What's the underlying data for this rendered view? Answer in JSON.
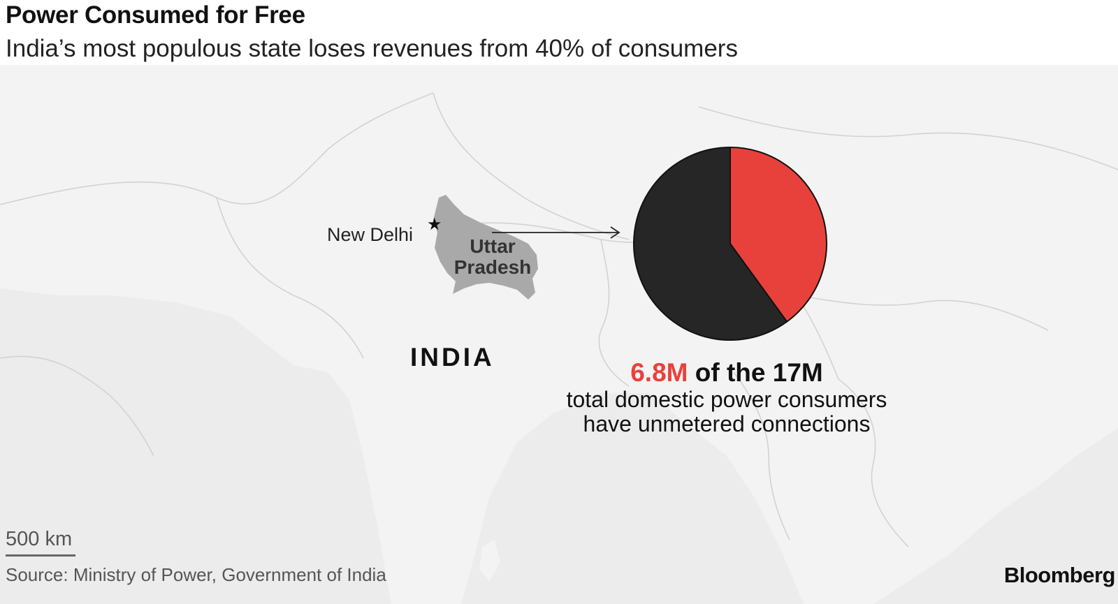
{
  "header": {
    "title": "Power Consumed for Free",
    "subtitle": "India’s most populous state loses revenues from 40% of consumers"
  },
  "map": {
    "labels": {
      "city": "New Delhi",
      "state": "Uttar Pradesh",
      "country": "INDIA"
    },
    "scale_label": "500 km",
    "colors": {
      "background": "#ececec",
      "land": "#f3f3f3",
      "highlight_state": "#a9a9a9",
      "borders": "#d2d2d2"
    }
  },
  "callout": {
    "highlight_value": "6.8M",
    "rest_of_line": " of the 17M",
    "line2": "total domestic power consumers",
    "line3": "have unmetered connections"
  },
  "chart_data": {
    "type": "pie",
    "slices": [
      {
        "value": 6.8,
        "color": "#e8413c"
      },
      {
        "value": 10.2,
        "color": "#262626"
      }
    ]
  },
  "footer": {
    "source": "Source: Ministry of Power, Government of India",
    "brand": "Bloomberg"
  }
}
